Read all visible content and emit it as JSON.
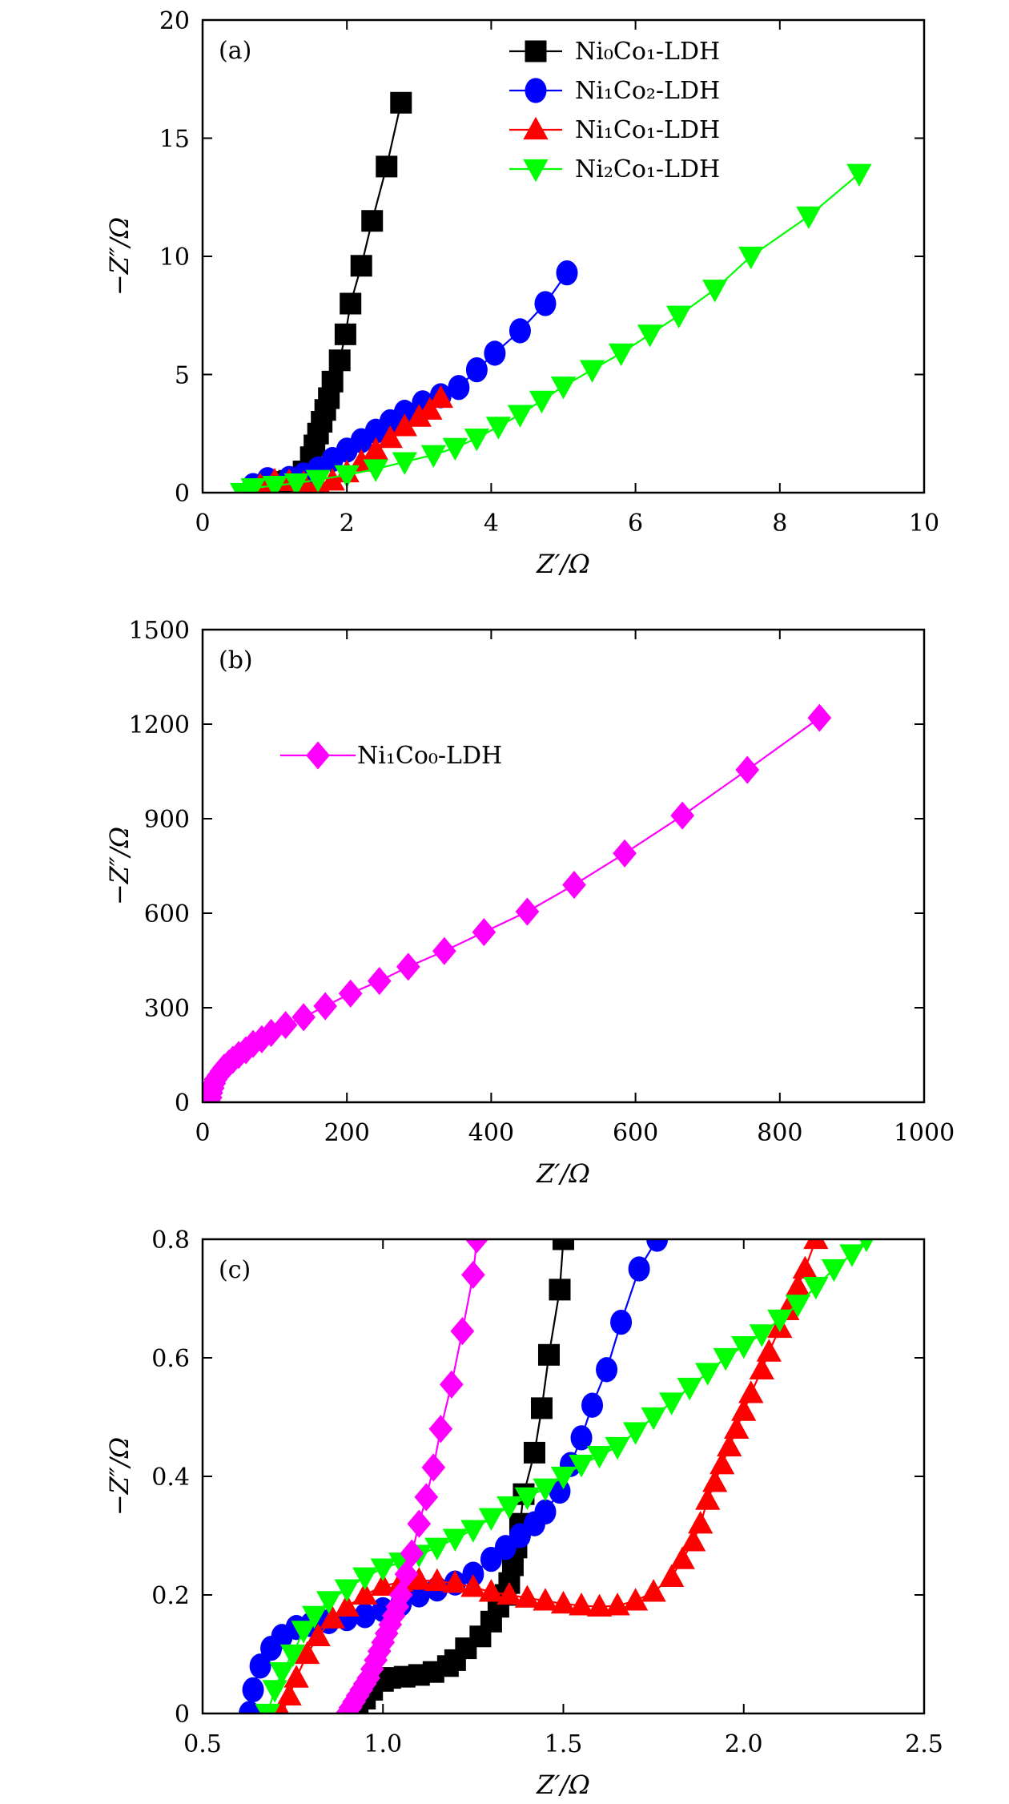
{
  "chart_data": [
    {
      "type": "line",
      "panel_label": "(a)",
      "xlabel": "Z′/Ω",
      "ylabel": "−Z″/Ω",
      "xlim": [
        0,
        10
      ],
      "ylim": [
        0,
        20
      ],
      "xticks": [
        "0",
        "2",
        "4",
        "6",
        "8",
        "10"
      ],
      "yticks": [
        "0",
        "5",
        "10",
        "15",
        "20"
      ],
      "grid": false,
      "legend_position": "top-right",
      "series": [
        {
          "name": "Ni₀Co₁-LDH",
          "color": "#000000",
          "marker": "square",
          "x": [
            0.95,
            1.0,
            1.1,
            1.2,
            1.3,
            1.4,
            1.5,
            1.55,
            1.6,
            1.65,
            1.7,
            1.75,
            1.8,
            1.9,
            1.98,
            2.05,
            2.2,
            2.35,
            2.55,
            2.75
          ],
          "y": [
            0,
            0.3,
            0.45,
            0.5,
            0.6,
            0.9,
            1.5,
            2.0,
            2.5,
            3.0,
            3.5,
            4.0,
            4.7,
            5.6,
            6.7,
            8.0,
            9.6,
            11.5,
            13.8,
            16.5
          ]
        },
        {
          "name": "Ni₁Co₂-LDH",
          "color": "#0000ff",
          "marker": "circle",
          "x": [
            0.65,
            0.7,
            0.9,
            1.2,
            1.4,
            1.6,
            1.8,
            2.0,
            2.2,
            2.4,
            2.6,
            2.8,
            3.05,
            3.3,
            3.55,
            3.8,
            4.05,
            4.4,
            4.75,
            5.05
          ],
          "y": [
            0,
            0.3,
            0.55,
            0.6,
            0.75,
            1.0,
            1.4,
            1.8,
            2.2,
            2.6,
            3.0,
            3.4,
            3.8,
            4.1,
            4.45,
            5.2,
            5.9,
            6.85,
            8.0,
            9.3
          ]
        },
        {
          "name": "Ni₁Co₁-LDH",
          "color": "#ff0000",
          "marker": "triangle-up",
          "x": [
            0.72,
            0.8,
            1.0,
            1.2,
            1.4,
            1.6,
            1.8,
            2.0,
            2.2,
            2.4,
            2.6,
            2.8,
            3.0,
            3.15,
            3.3
          ],
          "y": [
            0,
            0.3,
            0.5,
            0.48,
            0.4,
            0.37,
            0.5,
            0.85,
            1.3,
            1.8,
            2.3,
            2.8,
            3.2,
            3.5,
            4.0
          ]
        },
        {
          "name": "Ni₂Co₁-LDH",
          "color": "#00ff00",
          "marker": "triangle-down",
          "x": [
            0.55,
            0.7,
            1.0,
            1.3,
            1.6,
            2.0,
            2.4,
            2.8,
            3.2,
            3.5,
            3.8,
            4.1,
            4.4,
            4.7,
            5.0,
            5.4,
            5.8,
            6.2,
            6.6,
            7.1,
            7.6,
            8.4,
            9.1
          ],
          "y": [
            0,
            0.2,
            0.3,
            0.4,
            0.55,
            0.75,
            1.0,
            1.3,
            1.6,
            1.9,
            2.3,
            2.8,
            3.3,
            3.9,
            4.5,
            5.2,
            5.9,
            6.7,
            7.5,
            8.6,
            10.0,
            11.7,
            13.5
          ]
        }
      ]
    },
    {
      "type": "line",
      "panel_label": "(b)",
      "xlabel": "Z′/Ω",
      "ylabel": "−Z″/Ω",
      "xlim": [
        0,
        1000
      ],
      "ylim": [
        0,
        1500
      ],
      "xticks": [
        "0",
        "200",
        "400",
        "600",
        "800",
        "1000"
      ],
      "yticks": [
        "0",
        "300",
        "600",
        "900",
        "1200",
        "1500"
      ],
      "grid": false,
      "legend_position": "upper-left",
      "series": [
        {
          "name": "Ni₁Co₀-LDH",
          "color": "#ff00ff",
          "marker": "diamond",
          "x": [
            10,
            11,
            12,
            14,
            16,
            18,
            22,
            26,
            30,
            36,
            42,
            50,
            60,
            70,
            82,
            95,
            115,
            140,
            170,
            205,
            245,
            285,
            335,
            390,
            450,
            515,
            585,
            665,
            755,
            855
          ],
          "y": [
            0,
            15,
            30,
            45,
            60,
            72,
            85,
            98,
            110,
            122,
            135,
            150,
            165,
            185,
            200,
            220,
            245,
            270,
            305,
            345,
            385,
            430,
            480,
            540,
            605,
            690,
            790,
            910,
            1055,
            1220
          ]
        }
      ]
    },
    {
      "type": "line",
      "panel_label": "(c)",
      "xlabel": "Z′/Ω",
      "ylabel": "−Z″/Ω",
      "xlim": [
        0.5,
        2.5
      ],
      "ylim": [
        0,
        0.8
      ],
      "xticks": [
        "0.5",
        "1.0",
        "1.5",
        "2.0",
        "2.5"
      ],
      "yticks": [
        "0",
        "0.2",
        "0.4",
        "0.6",
        "0.8"
      ],
      "grid": false,
      "series": [
        {
          "color": "#000000",
          "marker": "square",
          "x": [
            0.93,
            0.95,
            0.97,
            1.0,
            1.02,
            1.06,
            1.1,
            1.14,
            1.18,
            1.2,
            1.23,
            1.27,
            1.3,
            1.32,
            1.34,
            1.35,
            1.36,
            1.37,
            1.38,
            1.39,
            1.42,
            1.44,
            1.46,
            1.49,
            1.5
          ],
          "y": [
            0,
            0.025,
            0.04,
            0.055,
            0.06,
            0.062,
            0.065,
            0.07,
            0.08,
            0.09,
            0.11,
            0.13,
            0.155,
            0.18,
            0.2,
            0.22,
            0.25,
            0.28,
            0.32,
            0.37,
            0.44,
            0.515,
            0.605,
            0.715,
            0.8
          ]
        },
        {
          "color": "#0000ff",
          "marker": "circle",
          "x": [
            0.63,
            0.64,
            0.66,
            0.69,
            0.72,
            0.76,
            0.8,
            0.85,
            0.9,
            0.95,
            1.0,
            1.05,
            1.1,
            1.15,
            1.2,
            1.25,
            1.3,
            1.34,
            1.38,
            1.42,
            1.45,
            1.49,
            1.52,
            1.55,
            1.58,
            1.62,
            1.66,
            1.71,
            1.76
          ],
          "y": [
            0,
            0.04,
            0.08,
            0.11,
            0.13,
            0.145,
            0.15,
            0.155,
            0.16,
            0.165,
            0.175,
            0.185,
            0.2,
            0.21,
            0.22,
            0.235,
            0.26,
            0.28,
            0.3,
            0.32,
            0.34,
            0.375,
            0.42,
            0.465,
            0.52,
            0.58,
            0.66,
            0.75,
            0.8
          ]
        },
        {
          "color": "#ff0000",
          "marker": "triangle-up",
          "x": [
            0.72,
            0.74,
            0.76,
            0.79,
            0.82,
            0.86,
            0.9,
            0.95,
            1.0,
            1.05,
            1.1,
            1.15,
            1.2,
            1.25,
            1.3,
            1.35,
            1.4,
            1.45,
            1.5,
            1.55,
            1.6,
            1.65,
            1.7,
            1.75,
            1.8,
            1.83,
            1.86,
            1.88,
            1.9,
            1.92,
            1.94,
            1.96,
            1.98,
            2.0,
            2.02,
            2.05,
            2.07,
            2.1,
            2.12,
            2.15,
            2.17,
            2.2
          ],
          "y": [
            0,
            0.03,
            0.06,
            0.1,
            0.13,
            0.16,
            0.18,
            0.2,
            0.215,
            0.222,
            0.225,
            0.223,
            0.22,
            0.213,
            0.205,
            0.2,
            0.195,
            0.19,
            0.185,
            0.182,
            0.18,
            0.182,
            0.19,
            0.205,
            0.23,
            0.26,
            0.29,
            0.32,
            0.36,
            0.39,
            0.42,
            0.45,
            0.48,
            0.51,
            0.54,
            0.58,
            0.61,
            0.65,
            0.68,
            0.72,
            0.75,
            0.8
          ]
        },
        {
          "color": "#00ff00",
          "marker": "triangle-down",
          "x": [
            0.68,
            0.7,
            0.72,
            0.75,
            0.78,
            0.81,
            0.85,
            0.9,
            0.95,
            1.0,
            1.05,
            1.1,
            1.15,
            1.2,
            1.25,
            1.3,
            1.35,
            1.4,
            1.45,
            1.5,
            1.55,
            1.6,
            1.65,
            1.7,
            1.75,
            1.8,
            1.85,
            1.9,
            1.95,
            2.0,
            2.05,
            2.1,
            2.15,
            2.2,
            2.25,
            2.3,
            2.34
          ],
          "y": [
            0,
            0.04,
            0.07,
            0.1,
            0.14,
            0.165,
            0.19,
            0.21,
            0.23,
            0.245,
            0.255,
            0.268,
            0.28,
            0.295,
            0.31,
            0.33,
            0.35,
            0.365,
            0.38,
            0.4,
            0.42,
            0.435,
            0.45,
            0.475,
            0.5,
            0.525,
            0.55,
            0.575,
            0.6,
            0.62,
            0.64,
            0.665,
            0.69,
            0.72,
            0.75,
            0.775,
            0.8
          ]
        },
        {
          "color": "#ff00ff",
          "marker": "diamond",
          "x": [
            0.9,
            0.91,
            0.92,
            0.93,
            0.94,
            0.95,
            0.96,
            0.97,
            0.98,
            0.99,
            1.0,
            1.01,
            1.02,
            1.03,
            1.04,
            1.05,
            1.065,
            1.08,
            1.1,
            1.12,
            1.14,
            1.16,
            1.19,
            1.22,
            1.25,
            1.26
          ],
          "y": [
            0,
            0.01,
            0.02,
            0.03,
            0.04,
            0.05,
            0.06,
            0.075,
            0.09,
            0.105,
            0.12,
            0.135,
            0.15,
            0.165,
            0.18,
            0.2,
            0.235,
            0.27,
            0.32,
            0.365,
            0.415,
            0.48,
            0.555,
            0.645,
            0.74,
            0.8
          ]
        }
      ]
    }
  ]
}
